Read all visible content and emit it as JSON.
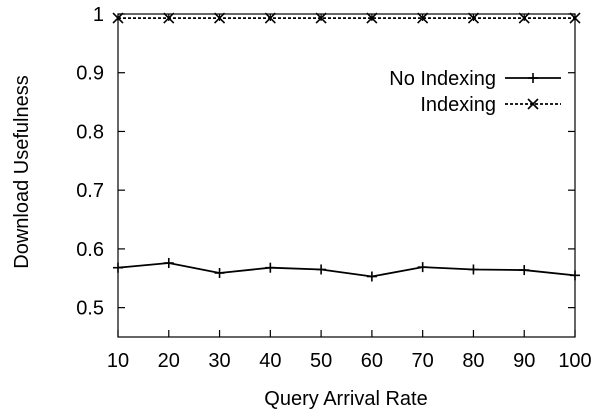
{
  "chart_data": {
    "type": "line",
    "title": "",
    "xlabel": "Query Arrival Rate",
    "ylabel": "Download Usefulness",
    "x": [
      10,
      20,
      30,
      40,
      50,
      60,
      70,
      80,
      90,
      100
    ],
    "xlim": [
      10,
      100
    ],
    "ylim": [
      0.45,
      1.0
    ],
    "xticks": [
      10,
      20,
      30,
      40,
      50,
      60,
      70,
      80,
      90,
      100
    ],
    "xtick_labels": [
      "10",
      "20",
      "30",
      "40",
      "50",
      "60",
      "70",
      "80",
      "90",
      "100"
    ],
    "yticks": [
      0.5,
      0.6,
      0.7,
      0.8,
      0.9,
      1.0
    ],
    "ytick_labels": [
      "0.5",
      "0.6",
      "0.7",
      "0.8",
      "0.9",
      "1"
    ],
    "grid": false,
    "legend_position": "top-right",
    "series": [
      {
        "name": "No Indexing",
        "marker": "plus",
        "line_style": "solid",
        "color": "#000000",
        "values": [
          0.568,
          0.576,
          0.559,
          0.568,
          0.565,
          0.553,
          0.569,
          0.565,
          0.564,
          0.555
        ]
      },
      {
        "name": "Indexing",
        "marker": "cross",
        "line_style": "dashed",
        "color": "#000000",
        "values": [
          0.993,
          0.993,
          0.993,
          0.993,
          0.993,
          0.993,
          0.993,
          0.993,
          0.993,
          0.993
        ]
      }
    ]
  }
}
